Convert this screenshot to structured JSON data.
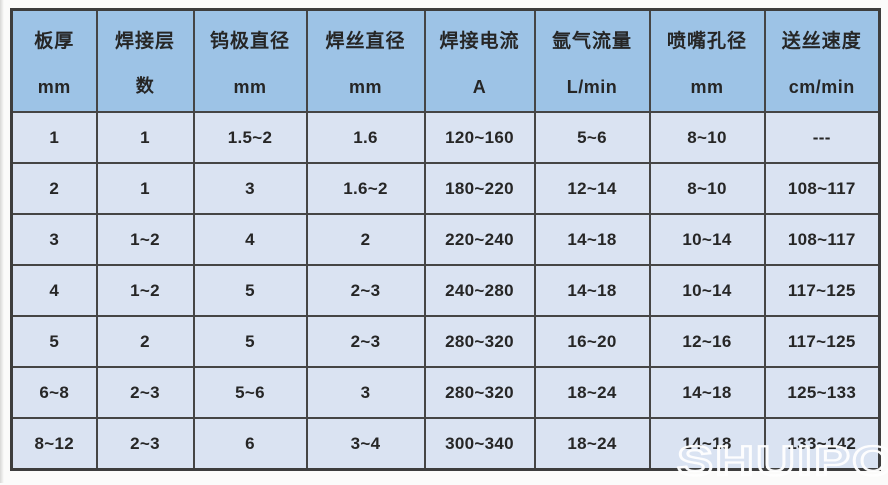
{
  "table": {
    "columns": [
      {
        "name": "板厚",
        "unit": "mm"
      },
      {
        "name": "焊接层",
        "unit": "数"
      },
      {
        "name": "钨极直径",
        "unit": "mm"
      },
      {
        "name": "焊丝直径",
        "unit": "mm"
      },
      {
        "name": "焊接电流",
        "unit": "A"
      },
      {
        "name": "氩气流量",
        "unit": "L/min"
      },
      {
        "name": "喷嘴孔径",
        "unit": "mm"
      },
      {
        "name": "送丝速度",
        "unit": "cm/min"
      }
    ],
    "rows": [
      [
        "1",
        "1",
        "1.5~2",
        "1.6",
        "120~160",
        "5~6",
        "8~10",
        "---"
      ],
      [
        "2",
        "1",
        "3",
        "1.6~2",
        "180~220",
        "12~14",
        "8~10",
        "108~117"
      ],
      [
        "3",
        "1~2",
        "4",
        "2",
        "220~240",
        "14~18",
        "10~14",
        "108~117"
      ],
      [
        "4",
        "1~2",
        "5",
        "2~3",
        "240~280",
        "14~18",
        "10~14",
        "117~125"
      ],
      [
        "5",
        "2",
        "5",
        "2~3",
        "280~320",
        "16~20",
        "12~16",
        "117~125"
      ],
      [
        "6~8",
        "2~3",
        "5~6",
        "3",
        "280~320",
        "18~24",
        "14~18",
        "125~133"
      ],
      [
        "8~12",
        "2~3",
        "6",
        "3~4",
        "300~340",
        "18~24",
        "14~18",
        "133~142"
      ]
    ]
  },
  "watermark": {
    "text": "SHUIPO",
    "color": "#ffffff"
  },
  "colors": {
    "header_bg": "#9dc3e6",
    "row_bg": "#dae3f2",
    "border": "#454545",
    "text": "#262626"
  }
}
